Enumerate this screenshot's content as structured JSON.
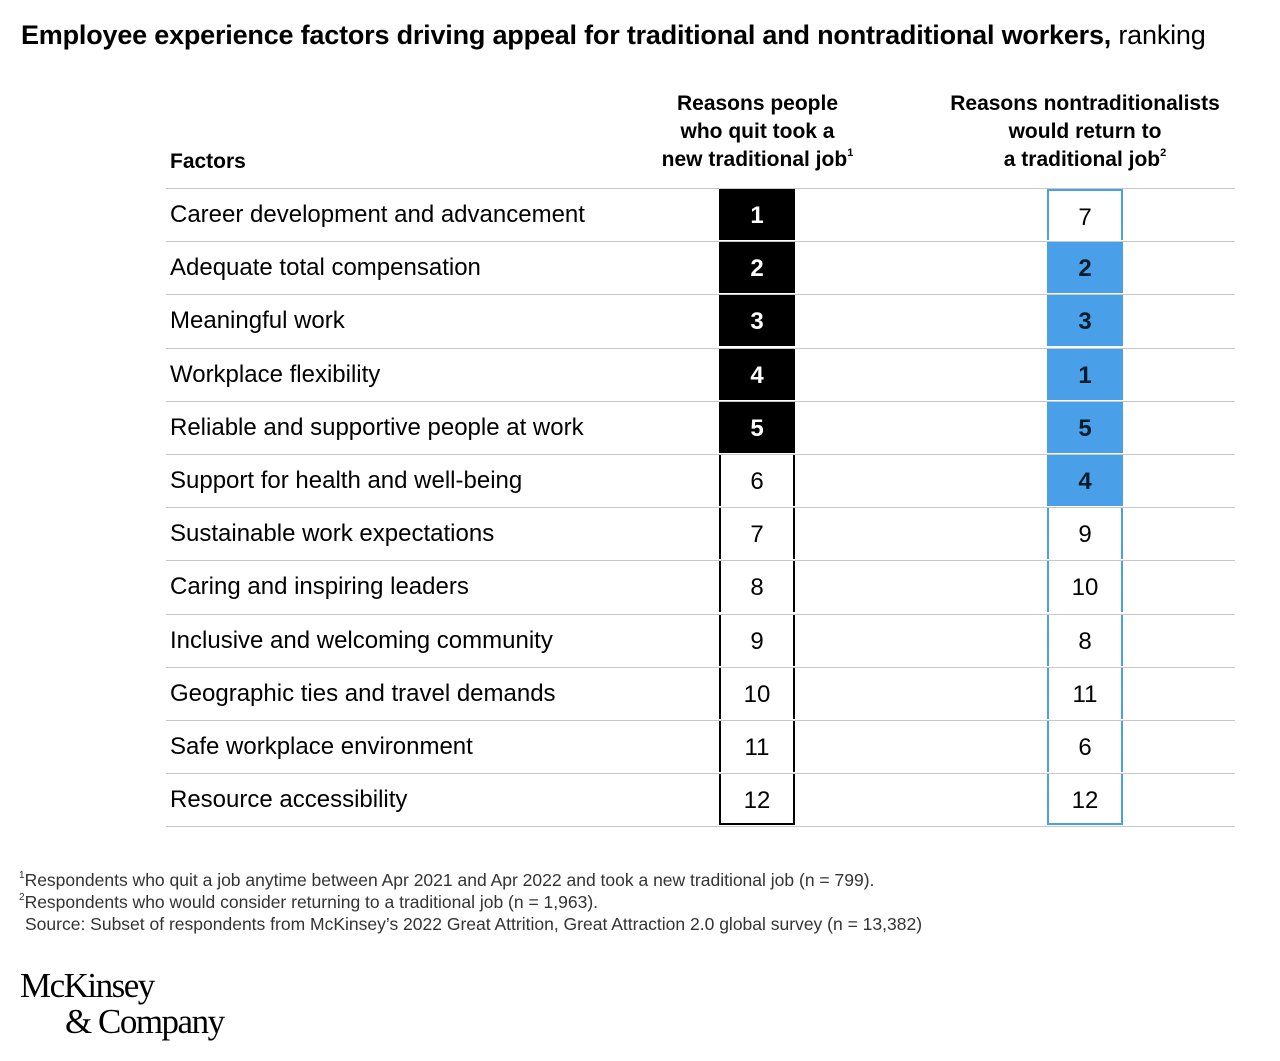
{
  "chart_data": {
    "type": "table",
    "title": "Employee experience factors driving appeal for traditional and nontraditional workers,",
    "subtitle": "ranking",
    "columns": {
      "factors": "Factors",
      "col1": {
        "lines": [
          "Reasons people",
          "who quit took a",
          "new traditional job"
        ],
        "footnote": "1"
      },
      "col2": {
        "lines": [
          "Reasons nontraditionalists",
          "would return to",
          "a traditional job"
        ],
        "footnote": "2"
      }
    },
    "rows": [
      {
        "factor": "Career development and advancement",
        "quit_rank": 1,
        "return_rank": 7
      },
      {
        "factor": "Adequate total compensation",
        "quit_rank": 2,
        "return_rank": 2
      },
      {
        "factor": "Meaningful work",
        "quit_rank": 3,
        "return_rank": 3
      },
      {
        "factor": "Workplace flexibility",
        "quit_rank": 4,
        "return_rank": 1
      },
      {
        "factor": "Reliable and supportive people at work",
        "quit_rank": 5,
        "return_rank": 5
      },
      {
        "factor": "Support for health and well-being",
        "quit_rank": 6,
        "return_rank": 4
      },
      {
        "factor": "Sustainable work expectations",
        "quit_rank": 7,
        "return_rank": 9
      },
      {
        "factor": "Caring and inspiring leaders",
        "quit_rank": 8,
        "return_rank": 10
      },
      {
        "factor": "Inclusive and welcoming community",
        "quit_rank": 9,
        "return_rank": 8
      },
      {
        "factor": "Geographic ties and travel demands",
        "quit_rank": 10,
        "return_rank": 11
      },
      {
        "factor": "Safe workplace environment",
        "quit_rank": 11,
        "return_rank": 6
      },
      {
        "factor": "Resource accessibility",
        "quit_rank": 12,
        "return_rank": 12
      }
    ],
    "highlight_top_n": 5,
    "colors": {
      "col1_highlight": "#000000",
      "col2_highlight": "#4aa0e8"
    }
  },
  "footnotes": [
    {
      "mark": "1",
      "text": "Respondents who quit a job anytime between Apr 2021 and Apr 2022 and took a new traditional job (n = 799)."
    },
    {
      "mark": "2",
      "text": "Respondents who would consider returning to a traditional job (n = 1,963)."
    },
    {
      "mark": "",
      "text": "Source: Subset of respondents from McKinsey’s 2022 Great Attrition, Great Attraction 2.0 global survey (n = 13,382)"
    }
  ],
  "logo": {
    "line1": "McKinsey",
    "line2": "& Company"
  }
}
